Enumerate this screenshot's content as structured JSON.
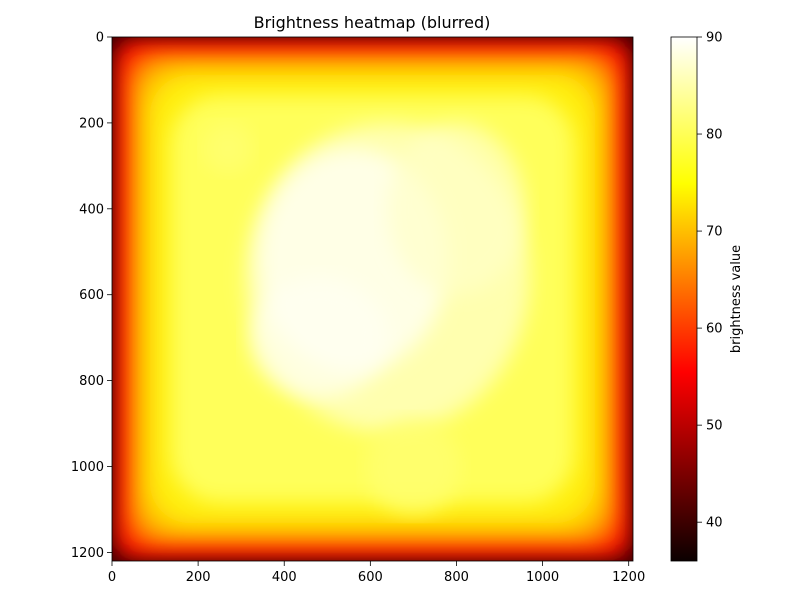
{
  "chart_data": {
    "type": "heatmap",
    "title": "Brightness heatmap (blurred)",
    "xlabel": "",
    "ylabel": "",
    "xlim": [
      0,
      1210
    ],
    "ylim": [
      1220,
      0
    ],
    "x_ticks": [
      "0",
      "200",
      "400",
      "600",
      "800",
      "1000",
      "1200"
    ],
    "y_ticks": [
      "0",
      "200",
      "400",
      "600",
      "800",
      "1000",
      "1200"
    ],
    "colorbar": {
      "label": "brightness value",
      "colormap": "hot",
      "range": [
        36,
        90
      ],
      "ticks": [
        "40",
        "50",
        "60",
        "70",
        "80",
        "90"
      ]
    },
    "grid": false,
    "description_values": {
      "edge_brightness": 36,
      "interior_brightness": 80,
      "peak_brightness": 90
    }
  }
}
